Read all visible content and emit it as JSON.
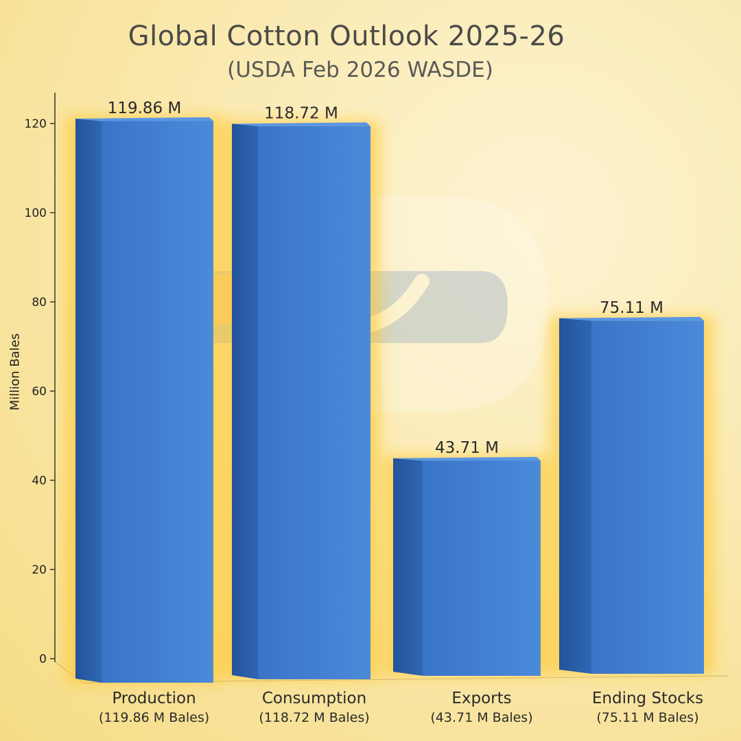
{
  "chart_data": {
    "type": "bar",
    "title": "Global Cotton Outlook 2025-26",
    "subtitle": "(USDA Feb 2026 WASDE)",
    "xlabel": "",
    "ylabel": "Million Bales",
    "ylim": [
      0,
      120
    ],
    "yticks": [
      0,
      20,
      40,
      60,
      80,
      100,
      120
    ],
    "yticklabels": [
      "0",
      "20",
      "40",
      "60",
      "80",
      "100",
      "120"
    ],
    "grid": false,
    "categories": [
      "Production",
      "Consumption",
      "Exports",
      "Ending Stocks"
    ],
    "sublabels": [
      "(119.86 M Bales)",
      "(118.72 M Bales)",
      "(43.71 M Bales)",
      "(75.11 M Bales)"
    ],
    "values": [
      119.86,
      118.72,
      43.71,
      75.11
    ],
    "value_labels": [
      "119.86 M",
      "118.72 M",
      "43.71 M",
      "75.11 M"
    ],
    "colors": {
      "bar_front": "#3f7fd4",
      "bar_side": "#2a5da8",
      "bar_top": "#5b96e2",
      "watermark_blue": "#4b7fd6",
      "watermark_orange": "#f08a3c"
    }
  }
}
